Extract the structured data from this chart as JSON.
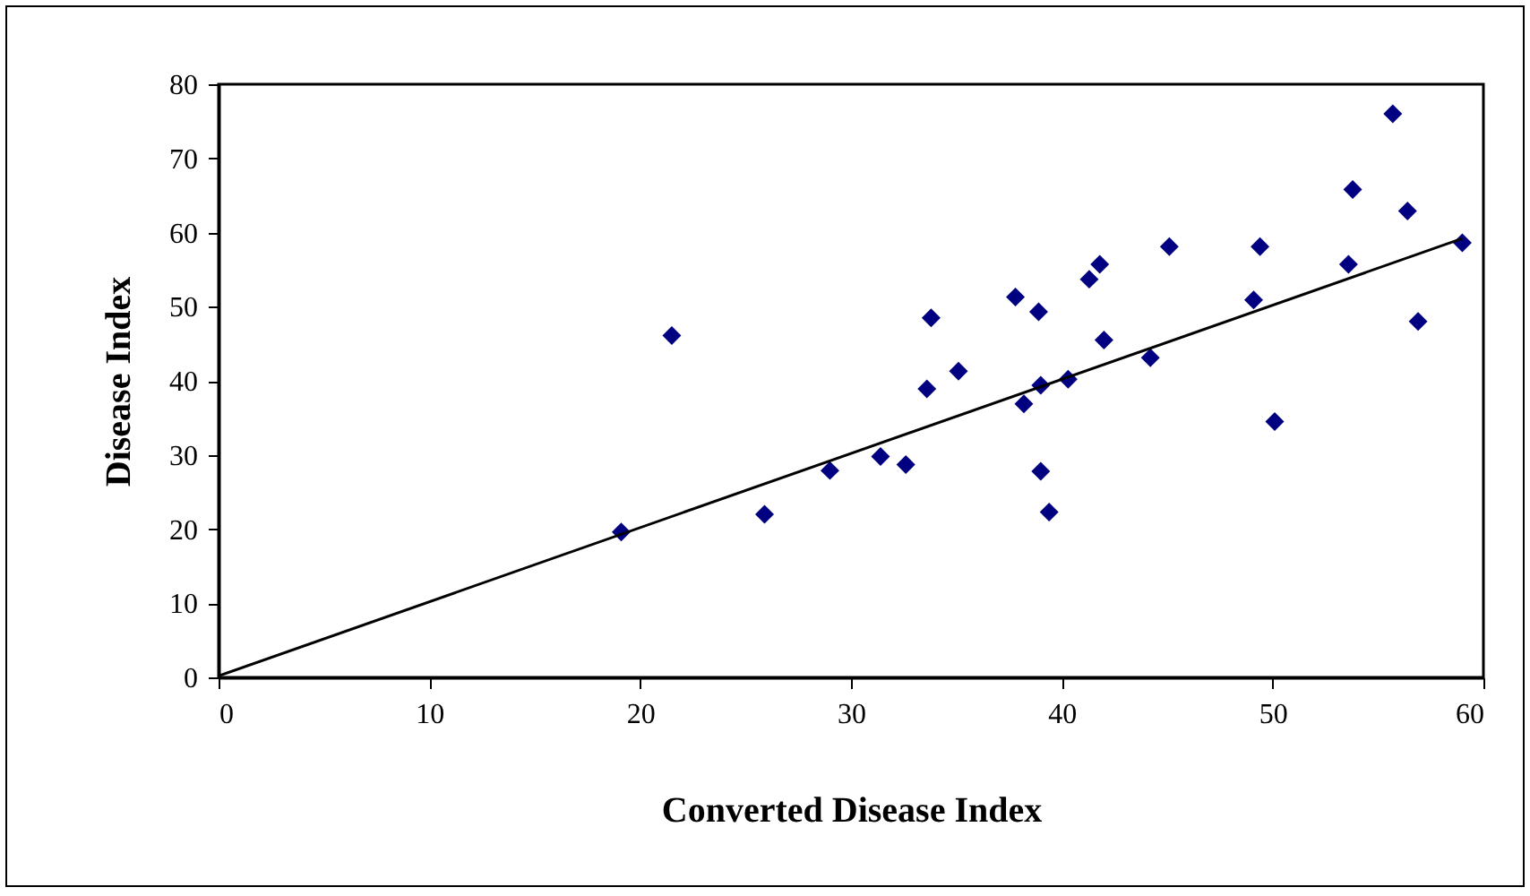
{
  "chart_data": {
    "type": "scatter",
    "xlabel": "Converted Disease Index",
    "ylabel": "Disease Index",
    "xlim": [
      0,
      60
    ],
    "xticks": [
      0,
      10,
      20,
      30,
      40,
      50,
      60
    ],
    "ylim": [
      0,
      80
    ],
    "yticks": [
      0,
      10,
      20,
      30,
      40,
      50,
      60,
      70,
      80
    ],
    "grid": false,
    "marker": "diamond",
    "series": [
      {
        "color": "#000080",
        "x": [
          19.1,
          21.5,
          25.9,
          29.0,
          31.4,
          32.6,
          33.6,
          33.8,
          35.1,
          37.8,
          38.2,
          38.9,
          39.0,
          39.0,
          39.4,
          40.3,
          41.3,
          41.8,
          42.0,
          44.2,
          45.1,
          49.1,
          49.4,
          50.1,
          53.6,
          53.8,
          55.7,
          56.4,
          56.9,
          59.0
        ],
        "values": [
          19.6,
          46.1,
          22.0,
          27.9,
          29.8,
          28.7,
          38.9,
          48.5,
          41.3,
          51.3,
          36.9,
          49.3,
          39.4,
          27.8,
          22.3,
          40.2,
          53.7,
          55.7,
          45.5,
          43.1,
          58.1,
          50.9,
          58.1,
          34.5,
          55.7,
          65.8,
          76.0,
          62.9,
          48.0,
          58.6
        ]
      },
      {
        "type": "line",
        "marker": "none",
        "color": "#000000",
        "x": [
          0,
          59
        ],
        "values": [
          0.2,
          59.2
        ]
      }
    ]
  }
}
